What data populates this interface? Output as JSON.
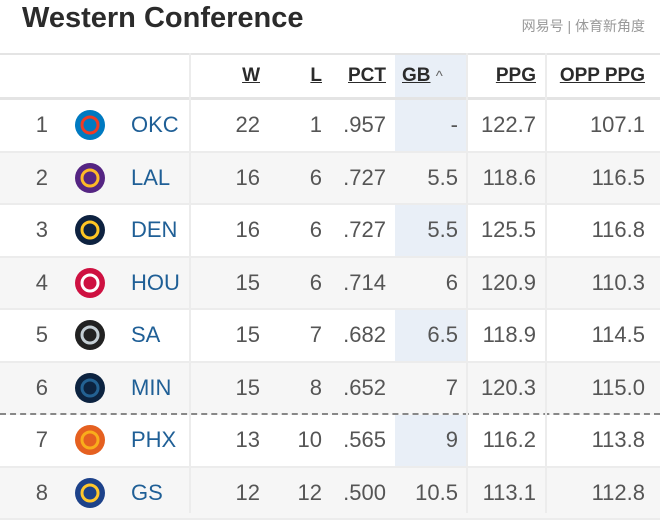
{
  "title": "Western Conference",
  "headers": {
    "w": "W",
    "l": "L",
    "pct": "PCT",
    "gb": "GB",
    "sort_icon": "^",
    "ppg": "PPG",
    "opp": "OPP PPG"
  },
  "rows": [
    {
      "rank": "1",
      "team": "OKC",
      "w": "22",
      "l": "1",
      "pct": ".957",
      "gb": "-",
      "ppg": "122.7",
      "opp": "107.1",
      "logo": "thunder-logo",
      "colors": [
        "#007ac1",
        "#ef3b24"
      ]
    },
    {
      "rank": "2",
      "team": "LAL",
      "w": "16",
      "l": "6",
      "pct": ".727",
      "gb": "5.5",
      "ppg": "118.6",
      "opp": "116.5",
      "logo": "lakers-logo",
      "colors": [
        "#552583",
        "#fdb927"
      ]
    },
    {
      "rank": "3",
      "team": "DEN",
      "w": "16",
      "l": "6",
      "pct": ".727",
      "gb": "5.5",
      "ppg": "125.5",
      "opp": "116.8",
      "logo": "nuggets-logo",
      "colors": [
        "#0e2240",
        "#fec524"
      ]
    },
    {
      "rank": "4",
      "team": "HOU",
      "w": "15",
      "l": "6",
      "pct": ".714",
      "gb": "6",
      "ppg": "120.9",
      "opp": "110.3",
      "logo": "rockets-logo",
      "colors": [
        "#ce1141",
        "#ffffff"
      ]
    },
    {
      "rank": "5",
      "team": "SA",
      "w": "15",
      "l": "7",
      "pct": ".682",
      "gb": "6.5",
      "ppg": "118.9",
      "opp": "114.5",
      "logo": "spurs-logo",
      "colors": [
        "#222222",
        "#c4ced4"
      ]
    },
    {
      "rank": "6",
      "team": "MIN",
      "w": "15",
      "l": "8",
      "pct": ".652",
      "gb": "7",
      "ppg": "120.3",
      "opp": "115.0",
      "logo": "timberwolves-logo",
      "colors": [
        "#0c2340",
        "#236192"
      ]
    },
    {
      "rank": "7",
      "team": "PHX",
      "w": "13",
      "l": "10",
      "pct": ".565",
      "gb": "9",
      "ppg": "116.2",
      "opp": "113.8",
      "logo": "suns-logo",
      "colors": [
        "#e56020",
        "#f9ad1b"
      ]
    },
    {
      "rank": "8",
      "team": "GS",
      "w": "12",
      "l": "12",
      "pct": ".500",
      "gb": "10.5",
      "ppg": "113.1",
      "opp": "112.8",
      "logo": "warriors-logo",
      "colors": [
        "#1d428a",
        "#ffc72c"
      ]
    }
  ],
  "watermark": "网易号 | 体育新角度"
}
